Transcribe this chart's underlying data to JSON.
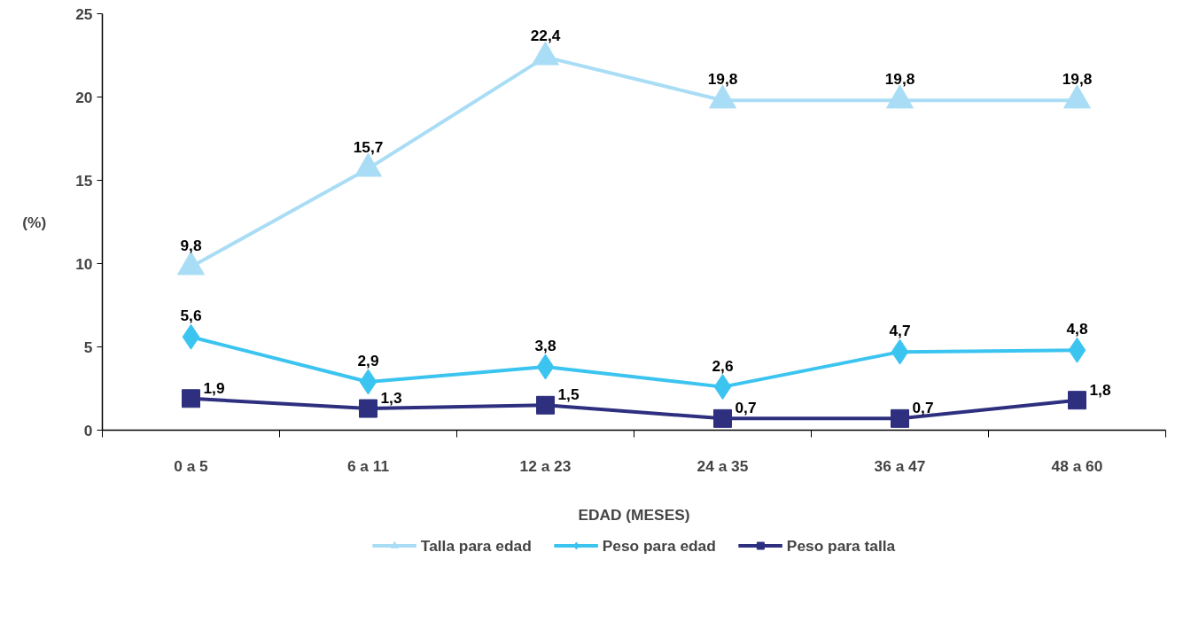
{
  "chart_data": {
    "type": "line",
    "xlabel": "EDAD (MESES)",
    "ylabel": "(%)",
    "categories": [
      "0 a 5",
      "6 a 11",
      "12 a 23",
      "24 a 35",
      "36 a 47",
      "48 a 60"
    ],
    "ylim": [
      0,
      25
    ],
    "yticks": [
      0,
      5,
      10,
      15,
      20,
      25
    ],
    "grid": false,
    "legend": "bottom",
    "line_style": "solid",
    "series": [
      {
        "name": "Talla para edad",
        "color": "#a9ddf5",
        "marker": "triangle",
        "values": [
          9.8,
          15.7,
          22.4,
          19.8,
          19.8,
          19.8
        ],
        "value_labels": [
          "9,8",
          "15,7",
          "22,4",
          "19,8",
          "19,8",
          "19,8"
        ]
      },
      {
        "name": "Peso para edad",
        "color": "#3cc4f0",
        "marker": "diamond",
        "values": [
          5.6,
          2.9,
          3.8,
          2.6,
          4.7,
          4.8
        ],
        "value_labels": [
          "5,6",
          "2,9",
          "3,8",
          "2,6",
          "4,7",
          "4,8"
        ]
      },
      {
        "name": "Peso para talla",
        "color": "#2e2f7f",
        "marker": "square",
        "values": [
          1.9,
          1.3,
          1.5,
          0.7,
          0.7,
          1.8
        ],
        "value_labels": [
          "1,9",
          "1,3",
          "1,5",
          "0,7",
          "0,7",
          "1,8"
        ]
      }
    ]
  }
}
